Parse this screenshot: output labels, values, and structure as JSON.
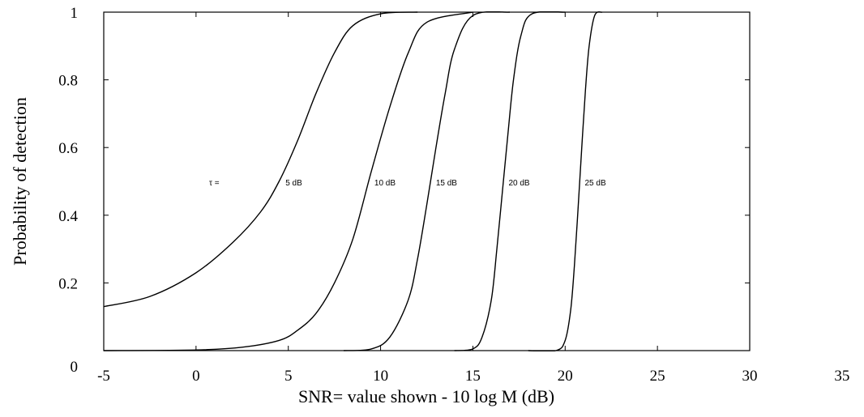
{
  "chart_data": {
    "type": "line",
    "title": "",
    "xlabel": "SNR= value shown - 10 log M (dB)",
    "ylabel": "Probability of  detection",
    "xlim": [
      -5,
      30
    ],
    "ylim": [
      0,
      1
    ],
    "x_tick_labels": [
      "-5",
      "0",
      "5",
      "10",
      "15",
      "20",
      "25",
      "30",
      "35"
    ],
    "y_tick_labels": [
      "0",
      "0.2",
      "0.4",
      "0.6",
      "0.8",
      "1"
    ],
    "grid": false,
    "tau_label": "τ =",
    "series": [
      {
        "name": "5 dB",
        "x": [
          -5,
          -2.5,
          0,
          2,
          3.5,
          4.5,
          5.5,
          6.5,
          7.5,
          8.5,
          10,
          12
        ],
        "y": [
          0.13,
          0.16,
          0.23,
          0.32,
          0.41,
          0.5,
          0.62,
          0.76,
          0.88,
          0.96,
          0.995,
          1.0
        ]
      },
      {
        "name": "10 dB",
        "x": [
          -5,
          0,
          2.5,
          4.5,
          5.5,
          6.5,
          7.5,
          8.5,
          9.5,
          10.5,
          11.5,
          12.5,
          15
        ],
        "y": [
          0.0,
          0.002,
          0.01,
          0.03,
          0.06,
          0.11,
          0.2,
          0.33,
          0.53,
          0.72,
          0.88,
          0.97,
          1.0
        ]
      },
      {
        "name": "15 dB",
        "x": [
          8,
          9.5,
          10.5,
          11.5,
          12,
          12.5,
          13,
          13.5,
          14,
          15,
          17
        ],
        "y": [
          0.0,
          0.005,
          0.04,
          0.15,
          0.27,
          0.43,
          0.6,
          0.76,
          0.89,
          0.99,
          1.0
        ]
      },
      {
        "name": "20 dB",
        "x": [
          14,
          15,
          15.5,
          16,
          16.3,
          16.6,
          16.9,
          17.2,
          17.6,
          18.2,
          20
        ],
        "y": [
          0.0,
          0.005,
          0.04,
          0.15,
          0.3,
          0.47,
          0.64,
          0.8,
          0.93,
          0.995,
          1.0
        ]
      },
      {
        "name": "25 dB",
        "x": [
          18,
          19.5,
          20,
          20.3,
          20.5,
          20.7,
          20.9,
          21.1,
          21.3,
          21.6,
          22
        ],
        "y": [
          0.0,
          0.0,
          0.03,
          0.12,
          0.25,
          0.42,
          0.6,
          0.77,
          0.9,
          0.99,
          1.0
        ]
      }
    ],
    "curve_label_y": 0.51
  }
}
